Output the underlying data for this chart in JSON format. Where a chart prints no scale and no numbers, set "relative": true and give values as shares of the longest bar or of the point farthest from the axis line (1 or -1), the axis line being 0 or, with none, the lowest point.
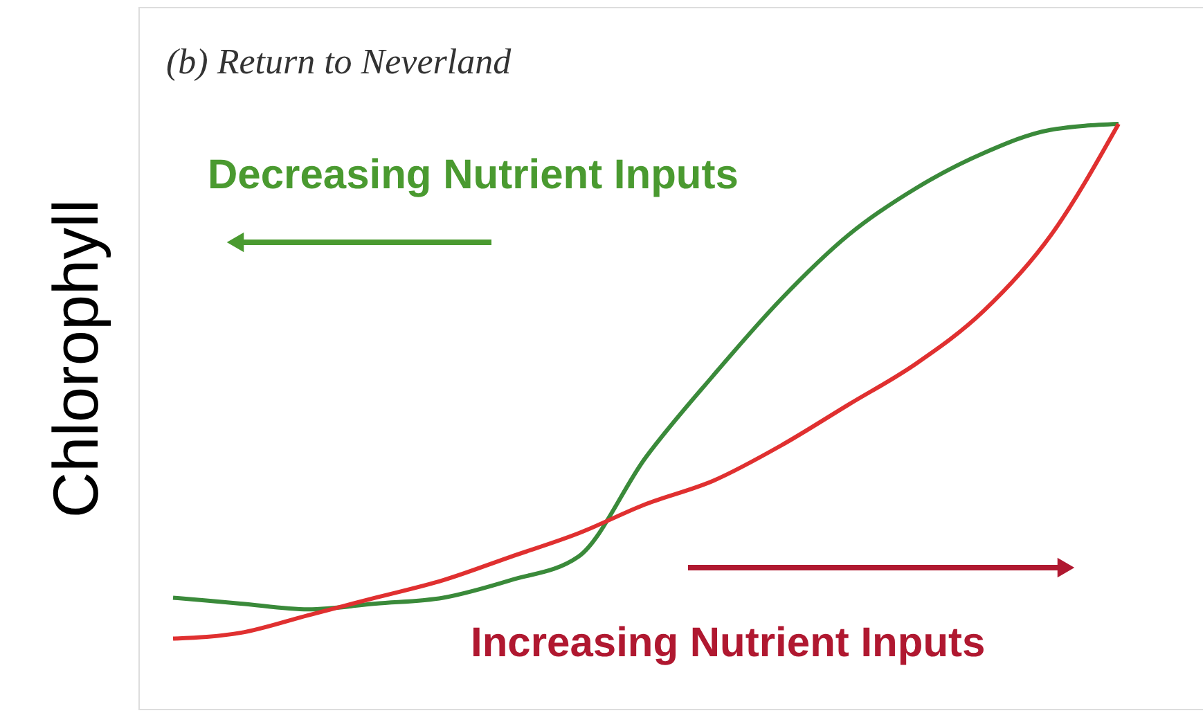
{
  "chart_data": {
    "type": "line",
    "title": "(b) Return to Neverland",
    "ylabel": "Chlorophyll",
    "relative": true,
    "categories": [
      null,
      null,
      null,
      null,
      null,
      null,
      null,
      null,
      null,
      null,
      null,
      null,
      null,
      null,
      null
    ],
    "series": [
      {
        "color": "#3a8a3a",
        "values": [
          0.19,
          0.18,
          0.17,
          0.18,
          0.19,
          0.22,
          0.26,
          0.43,
          0.57,
          0.7,
          0.81,
          0.89,
          0.95,
          0.99,
          1.0
        ]
      },
      {
        "color": "#e03030",
        "values": [
          0.12,
          0.13,
          0.16,
          0.19,
          0.22,
          0.26,
          0.3,
          0.35,
          0.39,
          0.45,
          0.52,
          0.59,
          0.68,
          0.81,
          1.0
        ]
      }
    ],
    "annotations": [
      "Decreasing Nutrient Inputs",
      "Increasing Nutrient Inputs"
    ],
    "grid": false,
    "marker": "none",
    "line_style": "solid"
  }
}
